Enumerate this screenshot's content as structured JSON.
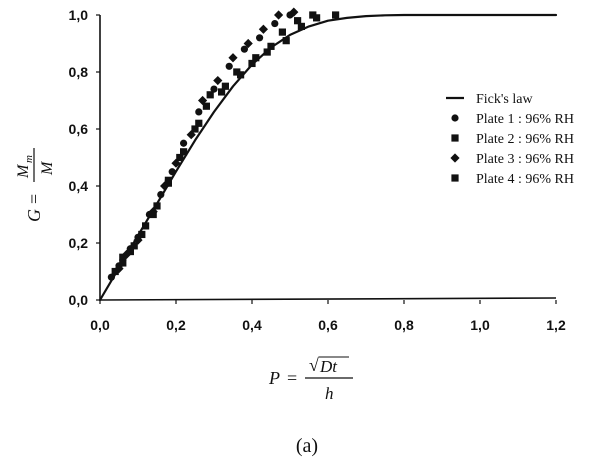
{
  "chart_data": {
    "type": "scatter",
    "x_axis": {
      "range": [
        0,
        1.2
      ],
      "ticks": [
        0,
        0.2,
        0.4,
        0.6,
        0.8,
        1.0,
        1.2
      ],
      "tick_labels": [
        "0,0",
        "0,2",
        "0,4",
        "0,6",
        "0,8",
        "1,0",
        "1,2"
      ],
      "label": {
        "lhs": "P",
        "eq": "=",
        "radical": "√",
        "numerator": "Dt",
        "denominator": "h"
      }
    },
    "y_axis": {
      "range": [
        0,
        1.0
      ],
      "ticks": [
        0,
        0.2,
        0.4,
        0.6,
        0.8,
        1.0
      ],
      "tick_labels": [
        "0,0",
        "0,2",
        "0,4",
        "0,6",
        "0,8",
        "1,0"
      ],
      "label": {
        "lhs": "G",
        "eq": "=",
        "numerator": "M",
        "numerator_sub": "m",
        "denominator": "M"
      }
    },
    "grid": false,
    "legend_position": "right",
    "caption": "(a)",
    "series": [
      {
        "name": "Fick's law",
        "kind": "line",
        "color": "#111111",
        "x": [
          0,
          0.05,
          0.1,
          0.15,
          0.2,
          0.25,
          0.3,
          0.35,
          0.4,
          0.45,
          0.5,
          0.55,
          0.6,
          0.65,
          0.7,
          0.75,
          0.8,
          0.9,
          1.0,
          1.1,
          1.2
        ],
        "y": [
          0,
          0.113,
          0.226,
          0.338,
          0.451,
          0.56,
          0.66,
          0.75,
          0.826,
          0.886,
          0.93,
          0.96,
          0.98,
          0.99,
          0.996,
          0.999,
          1.0,
          1.0,
          1.0,
          1.0,
          1.0
        ]
      },
      {
        "name": "Plate 1 : 96% RH",
        "kind": "scatter",
        "marker": "circle",
        "color": "#111111",
        "x": [
          0.03,
          0.05,
          0.08,
          0.1,
          0.13,
          0.16,
          0.19,
          0.22,
          0.26,
          0.3,
          0.34,
          0.38,
          0.42,
          0.46,
          0.5
        ],
        "y": [
          0.08,
          0.12,
          0.18,
          0.22,
          0.3,
          0.37,
          0.45,
          0.55,
          0.66,
          0.74,
          0.82,
          0.88,
          0.92,
          0.97,
          1.0
        ]
      },
      {
        "name": "Plate 2 : 96% RH",
        "kind": "scatter",
        "marker": "square",
        "color": "#111111",
        "x": [
          0.04,
          0.06,
          0.09,
          0.12,
          0.15,
          0.18,
          0.21,
          0.25,
          0.28,
          0.32,
          0.36,
          0.4,
          0.44,
          0.48,
          0.52,
          0.56
        ],
        "y": [
          0.1,
          0.15,
          0.19,
          0.26,
          0.33,
          0.41,
          0.5,
          0.6,
          0.68,
          0.73,
          0.8,
          0.83,
          0.87,
          0.94,
          0.98,
          1.0
        ]
      },
      {
        "name": "Plate 3 : 96% RH",
        "kind": "scatter",
        "marker": "diamond",
        "color": "#111111",
        "x": [
          0.05,
          0.07,
          0.1,
          0.14,
          0.17,
          0.2,
          0.24,
          0.27,
          0.31,
          0.35,
          0.39,
          0.43,
          0.47,
          0.51
        ],
        "y": [
          0.11,
          0.16,
          0.21,
          0.31,
          0.4,
          0.48,
          0.58,
          0.7,
          0.77,
          0.85,
          0.9,
          0.95,
          1.0,
          1.01
        ]
      },
      {
        "name": "Plate 4 : 96% RH",
        "kind": "scatter",
        "marker": "square",
        "color": "#111111",
        "x": [
          0.06,
          0.08,
          0.11,
          0.14,
          0.18,
          0.22,
          0.26,
          0.29,
          0.33,
          0.37,
          0.41,
          0.45,
          0.49,
          0.53,
          0.57,
          0.62
        ],
        "y": [
          0.13,
          0.17,
          0.23,
          0.3,
          0.42,
          0.52,
          0.62,
          0.72,
          0.75,
          0.79,
          0.85,
          0.89,
          0.91,
          0.96,
          0.99,
          1.0
        ]
      }
    ]
  }
}
